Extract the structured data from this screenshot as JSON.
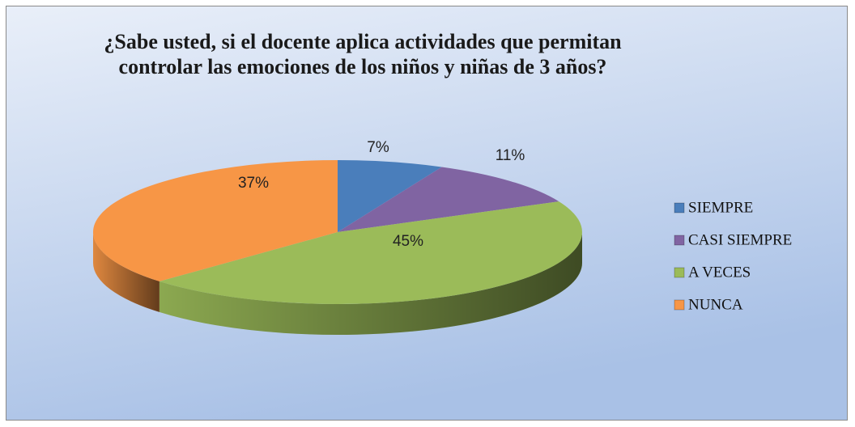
{
  "chart_data": {
    "type": "pie",
    "title": "¿Sabe usted, si el docente aplica actividades que permitan controlar las emociones de los niños y niñas de 3 años?",
    "categories": [
      "SIEMPRE",
      "CASI SIEMPRE",
      "A VECES",
      "NUNCA"
    ],
    "values": [
      7,
      11,
      45,
      37
    ],
    "value_labels": [
      "7%",
      "11%",
      "45%",
      "37%"
    ],
    "colors": [
      "#4a7ebb",
      "#8064a2",
      "#9bbb59",
      "#f79646"
    ],
    "legend": "right"
  }
}
